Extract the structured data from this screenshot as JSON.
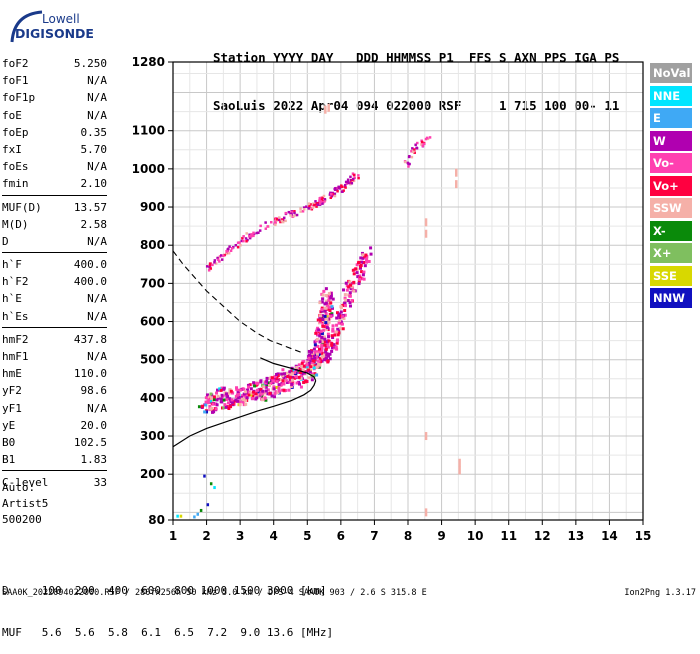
{
  "logo": {
    "line1": "Lowell",
    "line2": "DIGISONDE"
  },
  "header": {
    "line1": "Station YYYY DAY   DDD HHMMSS P1  FFS S AXN PPS IGA PS",
    "line2": "SaoLuis 2022 Apr04 094 022000 RSF     1 715 100 00- 11"
  },
  "params": {
    "group1": [
      {
        "k": "foF2",
        "v": "5.250"
      },
      {
        "k": "foF1",
        "v": "N/A"
      },
      {
        "k": "foF1p",
        "v": "N/A"
      },
      {
        "k": "foE",
        "v": "N/A"
      },
      {
        "k": "foEp",
        "v": "0.35"
      },
      {
        "k": "fxI",
        "v": "5.70"
      },
      {
        "k": "foEs",
        "v": "N/A"
      },
      {
        "k": "fmin",
        "v": "2.10"
      }
    ],
    "group2": [
      {
        "k": "MUF(D)",
        "v": "13.57"
      },
      {
        "k": "M(D)",
        "v": "2.58"
      },
      {
        "k": "D",
        "v": "N/A"
      }
    ],
    "group3": [
      {
        "k": "h`F",
        "v": "400.0"
      },
      {
        "k": "h`F2",
        "v": "400.0"
      },
      {
        "k": "h`E",
        "v": "N/A"
      },
      {
        "k": "h`Es",
        "v": "N/A"
      }
    ],
    "group4": [
      {
        "k": "hmF2",
        "v": "437.8"
      },
      {
        "k": "hmF1",
        "v": "N/A"
      },
      {
        "k": "hmE",
        "v": "110.0"
      },
      {
        "k": "yF2",
        "v": "98.6"
      },
      {
        "k": "yF1",
        "v": "N/A"
      },
      {
        "k": "yE",
        "v": "20.0"
      },
      {
        "k": "B0",
        "v": "102.5"
      },
      {
        "k": "B1",
        "v": "1.83"
      }
    ],
    "group5": [
      {
        "k": "C-level",
        "v": "33"
      }
    ]
  },
  "auto": {
    "line1": "Auto:",
    "line2": "Artist5",
    "line3": "500200"
  },
  "legend": [
    {
      "label": "NoVal",
      "color": "#a0a0a0"
    },
    {
      "label": "NNE",
      "color": "#00e5ff"
    },
    {
      "label": "E",
      "color": "#3fa9f5"
    },
    {
      "label": "W",
      "color": "#b000b0"
    },
    {
      "label": "Vo-",
      "color": "#ff40b0"
    },
    {
      "label": "Vo+",
      "color": "#ff0040"
    },
    {
      "label": "SSW",
      "color": "#f5b0a8"
    },
    {
      "label": "X-",
      "color": "#0a8a0a"
    },
    {
      "label": "X+",
      "color": "#7fbf5f"
    },
    {
      "label": "SSE",
      "color": "#d8d800"
    },
    {
      "label": "NNW",
      "color": "#1010c0"
    }
  ],
  "muf": {
    "line1": "D     100  200  400  600  800 1000 1500 3000 [km]",
    "line2": "MUF   5.6  5.6  5.8  6.1  6.5  7.2  9.0 13.6 [MHz]"
  },
  "footer": {
    "left": "SAA0K_2022094022000.RSF / 280fx256h 50 kHz 5.0 km / DPS-4 SAA0K 903 / 2.6 S 315.8 E",
    "right": "Ion2Png 1.3.17"
  },
  "chart_data": {
    "type": "scatter",
    "xlim": [
      1,
      15
    ],
    "ylim": [
      80,
      1280
    ],
    "x_ticks": [
      1,
      2,
      3,
      4,
      5,
      6,
      7,
      8,
      9,
      10,
      11,
      12,
      13,
      14,
      15
    ],
    "y_ticks": [
      80,
      200,
      300,
      400,
      500,
      600,
      700,
      800,
      900,
      1000,
      1100,
      1280
    ],
    "x_tick_labels": [
      "1",
      "2",
      "3",
      "4",
      "5",
      "6",
      "7",
      "8",
      "9",
      "10",
      "11",
      "12",
      "13",
      "14",
      "15"
    ],
    "y_tick_labels": [
      "80",
      "200",
      "300",
      "400",
      "500",
      "600",
      "700",
      "800",
      "900",
      "1000",
      "1100",
      "1280"
    ],
    "grid": true,
    "echo_traces": [
      {
        "name": "o-trace",
        "points": [
          [
            1.9,
            385
          ],
          [
            2.4,
            400
          ],
          [
            3.0,
            410
          ],
          [
            3.6,
            425
          ],
          [
            4.2,
            440
          ],
          [
            4.7,
            460
          ],
          [
            5.0,
            480
          ],
          [
            5.2,
            510
          ],
          [
            5.4,
            560
          ],
          [
            5.5,
            620
          ],
          [
            5.55,
            680
          ]
        ]
      },
      {
        "name": "x-trace",
        "points": [
          [
            2.5,
            395
          ],
          [
            3.2,
            415
          ],
          [
            3.9,
            440
          ],
          [
            4.6,
            470
          ],
          [
            5.2,
            500
          ],
          [
            5.6,
            520
          ],
          [
            5.8,
            560
          ],
          [
            6.0,
            620
          ],
          [
            6.2,
            680
          ],
          [
            6.5,
            730
          ],
          [
            6.8,
            790
          ]
        ]
      },
      {
        "name": "2F-trace",
        "points": [
          [
            2.0,
            745
          ],
          [
            2.8,
            800
          ],
          [
            3.6,
            850
          ],
          [
            4.4,
            880
          ],
          [
            5.2,
            910
          ],
          [
            5.8,
            940
          ],
          [
            6.1,
            960
          ],
          [
            6.5,
            990
          ]
        ]
      },
      {
        "name": "2F-upper",
        "points": [
          [
            7.9,
            1010
          ],
          [
            8.0,
            1030
          ],
          [
            8.1,
            1050
          ],
          [
            8.2,
            1060
          ],
          [
            8.4,
            1070
          ],
          [
            8.6,
            1080
          ]
        ]
      },
      {
        "name": "low-echoes",
        "points": [
          [
            1.1,
            90
          ],
          [
            1.2,
            90
          ],
          [
            1.6,
            88
          ],
          [
            1.7,
            95
          ],
          [
            1.8,
            105
          ],
          [
            2.0,
            120
          ],
          [
            2.1,
            175
          ],
          [
            2.2,
            165
          ],
          [
            1.9,
            195
          ]
        ]
      },
      {
        "name": "ssw-echoes",
        "points": [
          [
            5.5,
            1155
          ],
          [
            5.6,
            1160
          ],
          [
            8.5,
            830
          ],
          [
            8.5,
            860
          ],
          [
            8.5,
            300
          ],
          [
            8.5,
            100
          ],
          [
            9.5,
            210
          ],
          [
            9.5,
            230
          ],
          [
            9.4,
            960
          ],
          [
            9.4,
            990
          ]
        ]
      }
    ],
    "profile_solid": [
      [
        1.0,
        272
      ],
      [
        1.5,
        300
      ],
      [
        2.0,
        320
      ],
      [
        2.5,
        335
      ],
      [
        3.0,
        350
      ],
      [
        3.5,
        365
      ],
      [
        4.0,
        378
      ],
      [
        4.5,
        392
      ],
      [
        4.9,
        408
      ],
      [
        5.1,
        420
      ],
      [
        5.2,
        433
      ],
      [
        5.25,
        445
      ]
    ],
    "profile_solid_upper": [
      [
        5.25,
        445
      ],
      [
        5.2,
        455
      ],
      [
        5.0,
        465
      ],
      [
        4.5,
        478
      ],
      [
        4.0,
        490
      ],
      [
        3.6,
        505
      ]
    ],
    "profile_dashed": [
      [
        1.0,
        785
      ],
      [
        1.3,
        750
      ],
      [
        1.7,
        710
      ],
      [
        2.0,
        680
      ],
      [
        2.5,
        640
      ],
      [
        3.0,
        600
      ],
      [
        3.5,
        570
      ],
      [
        3.9,
        550
      ],
      [
        4.2,
        540
      ],
      [
        4.5,
        530
      ],
      [
        4.8,
        520
      ]
    ]
  }
}
